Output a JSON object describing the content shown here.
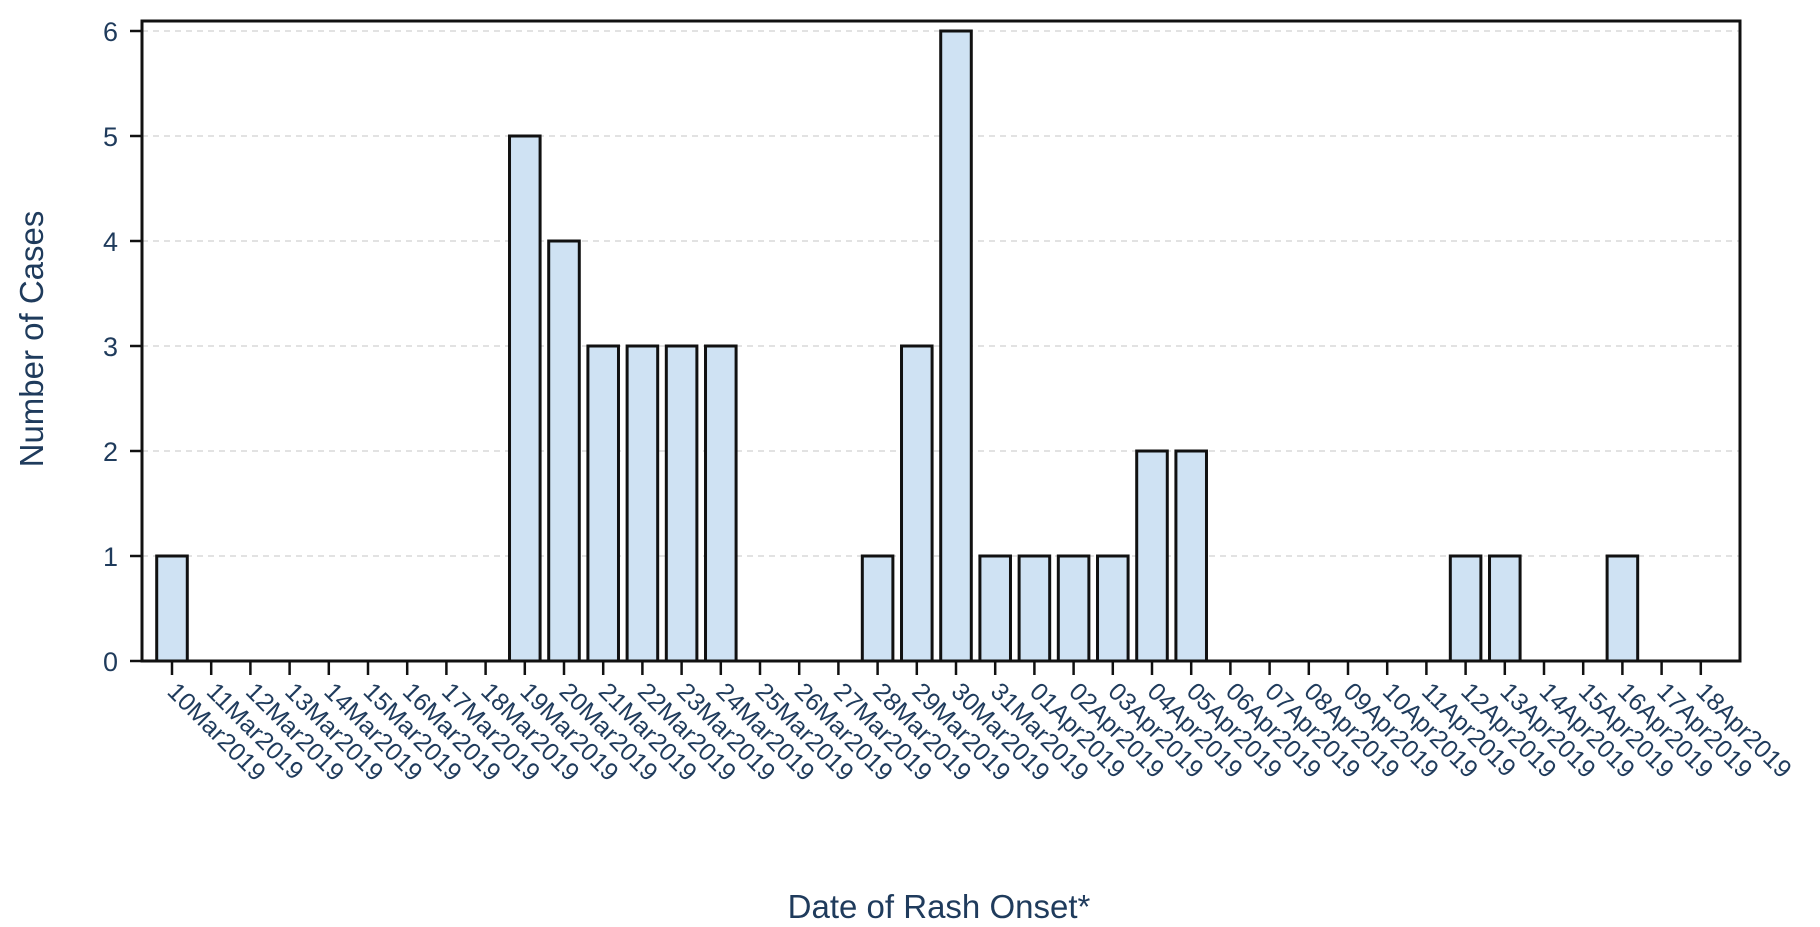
{
  "chart_data": {
    "type": "bar",
    "xlabel": "Date of Rash Onset*",
    "ylabel": "Number of Cases",
    "ylim": [
      0,
      6
    ],
    "yticks": [
      0,
      1,
      2,
      3,
      4,
      5,
      6
    ],
    "grid": "horizontal dashed",
    "categories": [
      "10Mar2019",
      "11Mar2019",
      "12Mar2019",
      "13Mar2019",
      "14Mar2019",
      "15Mar2019",
      "16Mar2019",
      "17Mar2019",
      "18Mar2019",
      "19Mar2019",
      "20Mar2019",
      "21Mar2019",
      "22Mar2019",
      "23Mar2019",
      "24Mar2019",
      "25Mar2019",
      "26Mar2019",
      "27Mar2019",
      "28Mar2019",
      "29Mar2019",
      "30Mar2019",
      "31Mar2019",
      "01Apr2019",
      "02Apr2019",
      "03Apr2019",
      "04Apr2019",
      "05Apr2019",
      "06Apr2019",
      "07Apr2019",
      "08Apr2019",
      "09Apr2019",
      "10Apr2019",
      "11Apr2019",
      "12Apr2019",
      "13Apr2019",
      "14Apr2019",
      "15Apr2019",
      "16Apr2019",
      "17Apr2019",
      "18Apr2019"
    ],
    "values": [
      1,
      0,
      0,
      0,
      0,
      0,
      0,
      0,
      0,
      5,
      4,
      3,
      3,
      3,
      3,
      0,
      0,
      0,
      1,
      3,
      6,
      1,
      1,
      1,
      1,
      2,
      2,
      0,
      0,
      0,
      0,
      0,
      0,
      1,
      1,
      0,
      0,
      1,
      0,
      0
    ],
    "colors": {
      "bar_fill": "#cfe2f3",
      "bar_stroke": "#111111",
      "text": "#1f3b5c",
      "grid": "#d9d9d9",
      "frame": "#111111"
    }
  }
}
